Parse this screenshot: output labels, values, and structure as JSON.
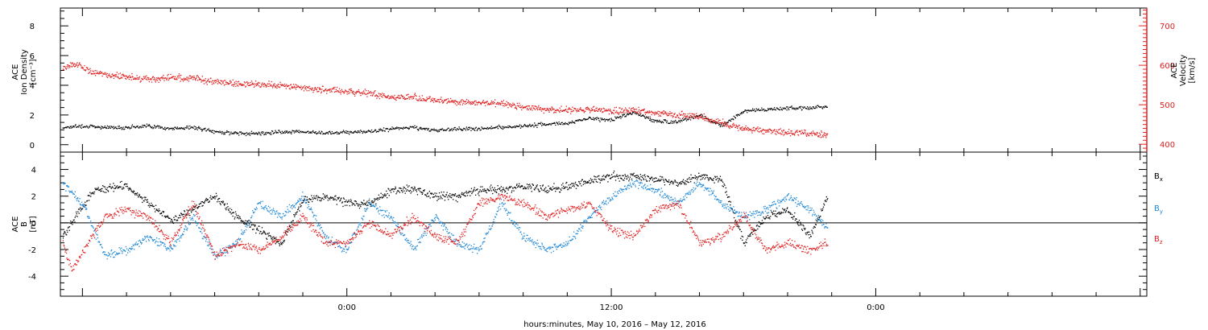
{
  "chart_data": [
    {
      "type": "scatter",
      "panel": "top",
      "ylabel_left": [
        "ACE",
        "Ion Density",
        "[cm⁻³]"
      ],
      "ylabel_right": [
        "ACE",
        "Velocity",
        "[km/s]"
      ],
      "ylim_left": [
        -0.5,
        9.2
      ],
      "yticks_left": [
        "0",
        "2",
        "4",
        "6",
        "8"
      ],
      "ylim_right": [
        380,
        745
      ],
      "yticks_right": [
        "400",
        "500",
        "600",
        "700"
      ],
      "series": [
        {
          "axis": "left",
          "color": "#000000",
          "hours": [
            -12.9,
            -12,
            -11,
            -10,
            -9,
            -8,
            -7,
            -6,
            -5,
            -4,
            -3,
            -2,
            -1,
            0,
            1,
            2,
            3,
            4,
            5,
            6,
            7,
            8,
            9,
            10,
            11,
            12,
            13,
            14,
            15,
            16,
            17,
            18,
            19,
            20,
            21,
            21.8
          ],
          "values": [
            1.2,
            1.3,
            1.2,
            1.2,
            1.3,
            1.1,
            1.2,
            0.9,
            0.8,
            0.8,
            0.9,
            0.9,
            0.8,
            0.9,
            0.9,
            1.1,
            1.2,
            1.0,
            1.1,
            1.1,
            1.2,
            1.3,
            1.4,
            1.5,
            1.8,
            1.7,
            2.2,
            1.6,
            1.6,
            2.0,
            1.3,
            2.3,
            2.4,
            2.5,
            2.5,
            2.6
          ]
        },
        {
          "axis": "right",
          "color": "#e02020",
          "hours": [
            -12.9,
            -12.3,
            -11.5,
            -10,
            -9,
            -8,
            -7,
            -6,
            -5,
            -4,
            -3,
            -2,
            -1,
            0,
            1,
            2,
            3,
            4,
            5,
            6,
            7,
            8,
            9,
            10,
            11,
            12,
            13,
            14,
            15,
            16,
            17,
            18,
            19,
            20,
            21,
            21.8
          ],
          "values": [
            595,
            605,
            582,
            572,
            565,
            570,
            568,
            560,
            555,
            553,
            548,
            545,
            538,
            535,
            530,
            520,
            520,
            512,
            508,
            505,
            505,
            495,
            490,
            488,
            490,
            485,
            488,
            480,
            476,
            470,
            455,
            440,
            435,
            432,
            428,
            425
          ]
        }
      ]
    },
    {
      "type": "scatter",
      "panel": "bottom",
      "ylabel": [
        "ACE",
        "B",
        "[nT]"
      ],
      "ylim": [
        -5.5,
        5.3
      ],
      "yticks": [
        "-4",
        "-2",
        "0",
        "2",
        "4"
      ],
      "zero_line": true,
      "legend_position": "right",
      "series": [
        {
          "name": "Bx",
          "legend": "B",
          "sub": "x",
          "color": "#000000",
          "hours": [
            -12.9,
            -11.5,
            -10,
            -9,
            -8,
            -7,
            -6,
            -5,
            -4,
            -3,
            -2,
            -1,
            0,
            1,
            2,
            3,
            4,
            5,
            6,
            7,
            8,
            9,
            10,
            11,
            12,
            13,
            14,
            15,
            16,
            17,
            18,
            19,
            20,
            21,
            21.8
          ],
          "values": [
            -1.0,
            2.5,
            2.8,
            1.5,
            0.2,
            1.0,
            2.0,
            0.5,
            -0.5,
            -1.5,
            1.8,
            2.0,
            1.5,
            1.5,
            2.5,
            2.6,
            2.0,
            2.0,
            2.5,
            2.5,
            2.8,
            2.5,
            2.8,
            3.2,
            3.5,
            3.5,
            3.3,
            3.0,
            3.5,
            3.2,
            -1.5,
            0.5,
            1.0,
            -1.0,
            2.0
          ]
        },
        {
          "name": "By",
          "legend": "B",
          "sub": "y",
          "color": "#1e88d8",
          "hours": [
            -12.9,
            -12,
            -11,
            -10,
            -9,
            -8,
            -7,
            -6,
            -5,
            -4,
            -3,
            -2,
            -1,
            0,
            1,
            2,
            3,
            4,
            5,
            6,
            7,
            8,
            9,
            10,
            11,
            12,
            13,
            14,
            15,
            16,
            17,
            18,
            19,
            20,
            21,
            21.8
          ],
          "values": [
            3.0,
            1.5,
            -2.5,
            -2.0,
            -1.0,
            -2.0,
            0.5,
            -2.5,
            -1.5,
            1.5,
            0.5,
            2.0,
            -1.0,
            -2.0,
            1.5,
            0.5,
            -2.0,
            0.5,
            -1.5,
            -2.0,
            1.5,
            -1.0,
            -2.0,
            -1.5,
            0.5,
            2.0,
            3.0,
            2.5,
            1.5,
            3.0,
            1.5,
            0.5,
            1.0,
            2.0,
            1.0,
            -0.3
          ]
        },
        {
          "name": "Bz",
          "legend": "B",
          "sub": "z",
          "color": "#e02020",
          "hours": [
            -12.9,
            -12.5,
            -11,
            -10,
            -9,
            -8,
            -7,
            -6,
            -5,
            -4,
            -3,
            -2,
            -1,
            0,
            1,
            2,
            3,
            4,
            5,
            6,
            7,
            8,
            9,
            10,
            11,
            12,
            13,
            14,
            15,
            16,
            17,
            18,
            19,
            20,
            21,
            21.8
          ],
          "values": [
            -1.5,
            -3.5,
            0.5,
            1.0,
            0.5,
            -1.5,
            1.5,
            -2.5,
            -1.5,
            -2.0,
            -1.0,
            0.5,
            -1.5,
            -1.5,
            0.0,
            -1.0,
            0.5,
            -1.0,
            -1.5,
            1.5,
            2.0,
            1.5,
            0.5,
            1.0,
            1.5,
            -0.5,
            -1.0,
            1.0,
            1.5,
            -1.5,
            -1.0,
            0.5,
            -2.0,
            -1.5,
            -2.0,
            -1.5
          ]
        }
      ]
    }
  ],
  "x_axis": {
    "range_hours": [
      -13,
      36.3
    ],
    "tick_labels": [
      {
        "hour": 0,
        "label": "0:00"
      },
      {
        "hour": 12,
        "label": "12:00"
      },
      {
        "hour": 24,
        "label": "0:00"
      }
    ],
    "xlabel": "hours:minutes, May 10, 2016 – May 12, 2016"
  },
  "colors": {
    "frame": "#000000",
    "velocity_axis": "#e02020",
    "density": "#000000",
    "bx": "#000000",
    "by": "#1e88d8",
    "bz": "#e02020"
  }
}
